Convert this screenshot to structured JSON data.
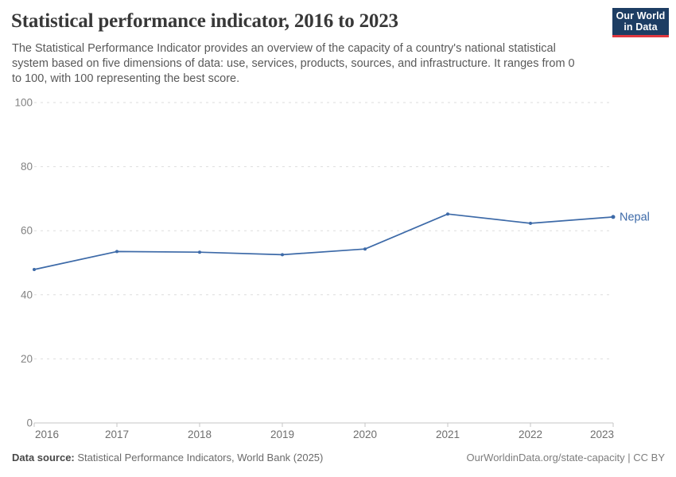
{
  "header": {
    "title": "Statistical performance indicator, 2016 to 2023",
    "subtitle": "The Statistical Performance Indicator provides an overview of the capacity of a country's national statistical system based on five dimensions of data: use, services, products, sources, and infrastructure. It ranges from 0 to 100, with 100 representing the best score."
  },
  "logo": {
    "line1": "Our World",
    "line2": "in Data",
    "bg_color": "#1d3d63",
    "stripe_color": "#e0373f"
  },
  "chart_data": {
    "type": "line",
    "title": "Statistical performance indicator, 2016 to 2023",
    "x": [
      2016,
      2017,
      2018,
      2019,
      2020,
      2021,
      2022,
      2023
    ],
    "series": [
      {
        "name": "Nepal",
        "color": "#3d6aa8",
        "values": [
          47.9,
          53.5,
          53.3,
          52.5,
          54.3,
          65.2,
          62.3,
          64.3
        ]
      }
    ],
    "ylim": [
      0,
      100
    ],
    "yticks": [
      0,
      20,
      40,
      60,
      80,
      100
    ],
    "xlabel": "",
    "ylabel": "",
    "grid": "horizontal-dashed",
    "legend_position": "end-of-line-label",
    "grid_color": "#dedede",
    "axis_color": "#c6c6c6",
    "ytick_label_color": "#838383",
    "xtick_label_color": "#6e6e6e"
  },
  "footer": {
    "source_label": "Data source:",
    "source_text": " Statistical Performance Indicators, World Bank (2025)",
    "link_text": "OurWorldinData.org/state-capacity | CC BY"
  }
}
